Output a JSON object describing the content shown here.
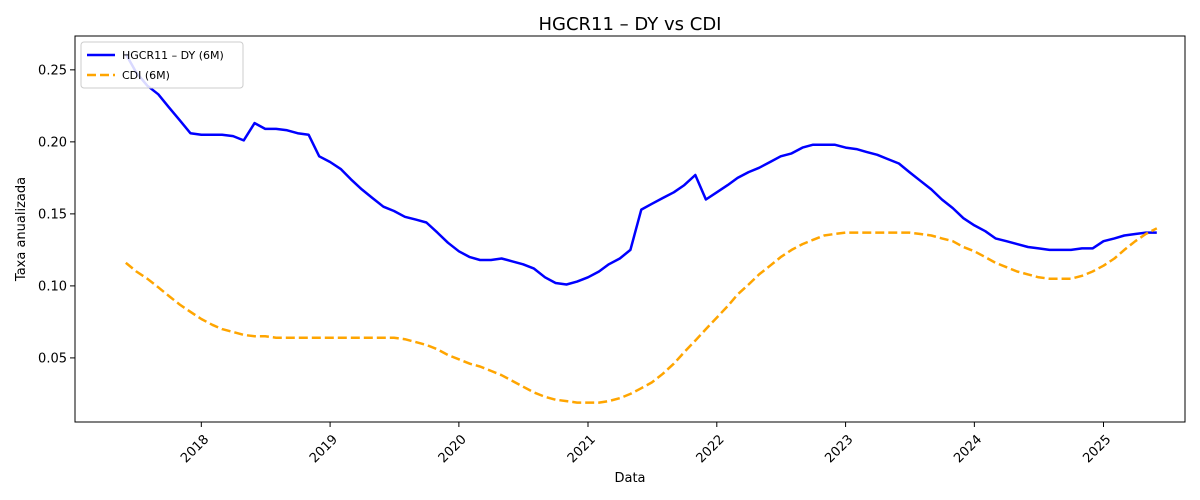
{
  "chart_data": {
    "type": "line",
    "title": "HGCR11 – DY vs CDI",
    "xlabel": "Data",
    "ylabel": "Taxa anualizada",
    "x_ticks": [
      "2018",
      "2019",
      "2020",
      "2021",
      "2022",
      "2023",
      "2024",
      "2025"
    ],
    "y_ticks": [
      "0.05",
      "0.10",
      "0.15",
      "0.20",
      "0.25"
    ],
    "xlim": [
      "2017-01-08",
      "2025-08-20"
    ],
    "ylim": [
      0.0055,
      0.2735
    ],
    "grid": false,
    "legend_position": "top-left",
    "series": [
      {
        "name": "HGCR11 – DY (6M)",
        "color": "#0000ff",
        "style": "solid",
        "points": [
          [
            "2017-06-01",
            0.261
          ],
          [
            "2017-07-01",
            0.248
          ],
          [
            "2017-08-01",
            0.239
          ],
          [
            "2017-09-01",
            0.233
          ],
          [
            "2017-10-01",
            0.224
          ],
          [
            "2017-11-01",
            0.215
          ],
          [
            "2017-12-01",
            0.206
          ],
          [
            "2018-01-01",
            0.205
          ],
          [
            "2018-02-01",
            0.205
          ],
          [
            "2018-03-01",
            0.205
          ],
          [
            "2018-04-01",
            0.204
          ],
          [
            "2018-05-01",
            0.201
          ],
          [
            "2018-06-01",
            0.213
          ],
          [
            "2018-07-01",
            0.209
          ],
          [
            "2018-08-01",
            0.209
          ],
          [
            "2018-09-01",
            0.208
          ],
          [
            "2018-10-01",
            0.206
          ],
          [
            "2018-11-01",
            0.205
          ],
          [
            "2018-12-01",
            0.19
          ],
          [
            "2019-01-01",
            0.186
          ],
          [
            "2019-02-01",
            0.181
          ],
          [
            "2019-03-01",
            0.174
          ],
          [
            "2019-04-01",
            0.167
          ],
          [
            "2019-05-01",
            0.161
          ],
          [
            "2019-06-01",
            0.155
          ],
          [
            "2019-07-01",
            0.152
          ],
          [
            "2019-08-01",
            0.148
          ],
          [
            "2019-09-01",
            0.146
          ],
          [
            "2019-10-01",
            0.144
          ],
          [
            "2019-11-01",
            0.137
          ],
          [
            "2019-12-01",
            0.13
          ],
          [
            "2020-01-01",
            0.124
          ],
          [
            "2020-02-01",
            0.12
          ],
          [
            "2020-03-01",
            0.118
          ],
          [
            "2020-04-01",
            0.118
          ],
          [
            "2020-05-01",
            0.119
          ],
          [
            "2020-06-01",
            0.117
          ],
          [
            "2020-07-01",
            0.115
          ],
          [
            "2020-08-01",
            0.112
          ],
          [
            "2020-09-01",
            0.106
          ],
          [
            "2020-10-01",
            0.102
          ],
          [
            "2020-11-01",
            0.101
          ],
          [
            "2020-12-01",
            0.103
          ],
          [
            "2021-01-01",
            0.106
          ],
          [
            "2021-02-01",
            0.11
          ],
          [
            "2021-03-01",
            0.115
          ],
          [
            "2021-04-01",
            0.119
          ],
          [
            "2021-05-01",
            0.125
          ],
          [
            "2021-06-01",
            0.153
          ],
          [
            "2021-07-01",
            0.157
          ],
          [
            "2021-08-01",
            0.161
          ],
          [
            "2021-09-01",
            0.165
          ],
          [
            "2021-10-01",
            0.17
          ],
          [
            "2021-11-01",
            0.177
          ],
          [
            "2021-12-01",
            0.16
          ],
          [
            "2022-01-01",
            0.165
          ],
          [
            "2022-02-01",
            0.17
          ],
          [
            "2022-03-01",
            0.175
          ],
          [
            "2022-04-01",
            0.179
          ],
          [
            "2022-05-01",
            0.182
          ],
          [
            "2022-06-01",
            0.186
          ],
          [
            "2022-07-01",
            0.19
          ],
          [
            "2022-08-01",
            0.192
          ],
          [
            "2022-09-01",
            0.196
          ],
          [
            "2022-10-01",
            0.198
          ],
          [
            "2022-11-01",
            0.198
          ],
          [
            "2022-12-01",
            0.198
          ],
          [
            "2023-01-01",
            0.196
          ],
          [
            "2023-02-01",
            0.195
          ],
          [
            "2023-03-01",
            0.193
          ],
          [
            "2023-04-01",
            0.191
          ],
          [
            "2023-05-01",
            0.188
          ],
          [
            "2023-06-01",
            0.185
          ],
          [
            "2023-07-01",
            0.179
          ],
          [
            "2023-08-01",
            0.173
          ],
          [
            "2023-09-01",
            0.167
          ],
          [
            "2023-10-01",
            0.16
          ],
          [
            "2023-11-01",
            0.154
          ],
          [
            "2023-12-01",
            0.147
          ],
          [
            "2024-01-01",
            0.142
          ],
          [
            "2024-02-01",
            0.138
          ],
          [
            "2024-03-01",
            0.133
          ],
          [
            "2024-04-01",
            0.131
          ],
          [
            "2024-05-01",
            0.129
          ],
          [
            "2024-06-01",
            0.127
          ],
          [
            "2024-07-01",
            0.126
          ],
          [
            "2024-08-01",
            0.125
          ],
          [
            "2024-09-01",
            0.125
          ],
          [
            "2024-10-01",
            0.125
          ],
          [
            "2024-11-01",
            0.126
          ],
          [
            "2024-12-01",
            0.126
          ],
          [
            "2025-01-01",
            0.131
          ],
          [
            "2025-02-01",
            0.133
          ],
          [
            "2025-03-01",
            0.135
          ],
          [
            "2025-04-01",
            0.136
          ],
          [
            "2025-05-01",
            0.137
          ],
          [
            "2025-06-01",
            0.137
          ]
        ]
      },
      {
        "name": "CDI (6M)",
        "color": "#ffa500",
        "style": "dashed",
        "points": [
          [
            "2017-06-01",
            0.116
          ],
          [
            "2017-07-01",
            0.11
          ],
          [
            "2017-08-01",
            0.105
          ],
          [
            "2017-09-01",
            0.099
          ],
          [
            "2017-10-01",
            0.093
          ],
          [
            "2017-11-01",
            0.087
          ],
          [
            "2017-12-01",
            0.082
          ],
          [
            "2018-01-01",
            0.077
          ],
          [
            "2018-02-01",
            0.073
          ],
          [
            "2018-03-01",
            0.07
          ],
          [
            "2018-04-01",
            0.068
          ],
          [
            "2018-05-01",
            0.066
          ],
          [
            "2018-06-01",
            0.065
          ],
          [
            "2018-07-01",
            0.065
          ],
          [
            "2018-08-01",
            0.064
          ],
          [
            "2018-09-01",
            0.064
          ],
          [
            "2018-10-01",
            0.064
          ],
          [
            "2018-11-01",
            0.064
          ],
          [
            "2018-12-01",
            0.064
          ],
          [
            "2019-01-01",
            0.064
          ],
          [
            "2019-02-01",
            0.064
          ],
          [
            "2019-03-01",
            0.064
          ],
          [
            "2019-04-01",
            0.064
          ],
          [
            "2019-05-01",
            0.064
          ],
          [
            "2019-06-01",
            0.064
          ],
          [
            "2019-07-01",
            0.064
          ],
          [
            "2019-08-01",
            0.063
          ],
          [
            "2019-09-01",
            0.061
          ],
          [
            "2019-10-01",
            0.059
          ],
          [
            "2019-11-01",
            0.056
          ],
          [
            "2019-12-01",
            0.052
          ],
          [
            "2020-01-01",
            0.049
          ],
          [
            "2020-02-01",
            0.046
          ],
          [
            "2020-03-01",
            0.044
          ],
          [
            "2020-04-01",
            0.041
          ],
          [
            "2020-05-01",
            0.038
          ],
          [
            "2020-06-01",
            0.034
          ],
          [
            "2020-07-01",
            0.03
          ],
          [
            "2020-08-01",
            0.026
          ],
          [
            "2020-09-01",
            0.023
          ],
          [
            "2020-10-01",
            0.021
          ],
          [
            "2020-11-01",
            0.02
          ],
          [
            "2020-12-01",
            0.019
          ],
          [
            "2021-01-01",
            0.019
          ],
          [
            "2021-02-01",
            0.019
          ],
          [
            "2021-03-01",
            0.02
          ],
          [
            "2021-04-01",
            0.022
          ],
          [
            "2021-05-01",
            0.025
          ],
          [
            "2021-06-01",
            0.029
          ],
          [
            "2021-07-01",
            0.033
          ],
          [
            "2021-08-01",
            0.039
          ],
          [
            "2021-09-01",
            0.046
          ],
          [
            "2021-10-01",
            0.054
          ],
          [
            "2021-11-01",
            0.062
          ],
          [
            "2021-12-01",
            0.07
          ],
          [
            "2022-01-01",
            0.078
          ],
          [
            "2022-02-01",
            0.086
          ],
          [
            "2022-03-01",
            0.094
          ],
          [
            "2022-04-01",
            0.101
          ],
          [
            "2022-05-01",
            0.108
          ],
          [
            "2022-06-01",
            0.114
          ],
          [
            "2022-07-01",
            0.12
          ],
          [
            "2022-08-01",
            0.125
          ],
          [
            "2022-09-01",
            0.129
          ],
          [
            "2022-10-01",
            0.132
          ],
          [
            "2022-11-01",
            0.135
          ],
          [
            "2022-12-01",
            0.136
          ],
          [
            "2023-01-01",
            0.137
          ],
          [
            "2023-02-01",
            0.137
          ],
          [
            "2023-03-01",
            0.137
          ],
          [
            "2023-04-01",
            0.137
          ],
          [
            "2023-05-01",
            0.137
          ],
          [
            "2023-06-01",
            0.137
          ],
          [
            "2023-07-01",
            0.137
          ],
          [
            "2023-08-01",
            0.136
          ],
          [
            "2023-09-01",
            0.135
          ],
          [
            "2023-10-01",
            0.133
          ],
          [
            "2023-11-01",
            0.131
          ],
          [
            "2023-12-01",
            0.127
          ],
          [
            "2024-01-01",
            0.124
          ],
          [
            "2024-02-01",
            0.12
          ],
          [
            "2024-03-01",
            0.116
          ],
          [
            "2024-04-01",
            0.113
          ],
          [
            "2024-05-01",
            0.11
          ],
          [
            "2024-06-01",
            0.108
          ],
          [
            "2024-07-01",
            0.106
          ],
          [
            "2024-08-01",
            0.105
          ],
          [
            "2024-09-01",
            0.105
          ],
          [
            "2024-10-01",
            0.105
          ],
          [
            "2024-11-01",
            0.107
          ],
          [
            "2024-12-01",
            0.11
          ],
          [
            "2025-01-01",
            0.114
          ],
          [
            "2025-02-01",
            0.119
          ],
          [
            "2025-03-01",
            0.125
          ],
          [
            "2025-04-01",
            0.131
          ],
          [
            "2025-05-01",
            0.136
          ],
          [
            "2025-06-01",
            0.14
          ]
        ]
      }
    ]
  }
}
